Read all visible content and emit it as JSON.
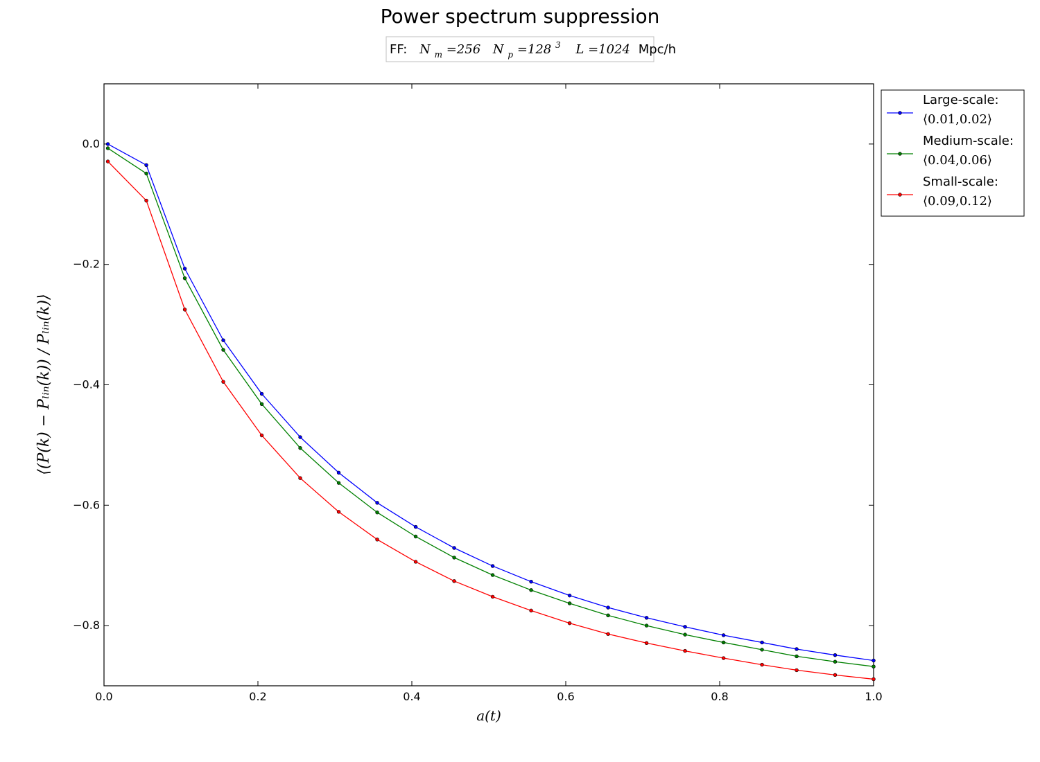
{
  "chart_data": {
    "type": "line",
    "title": "Power spectrum suppression",
    "annotation": {
      "prefix": "FF:",
      "Nm": "N",
      "Nm_sub": "m",
      "Nm_value": "=256",
      "Np": "N",
      "Np_sub": "p",
      "Np_value": "=128",
      "Np_exp": "3",
      "L": "L",
      "L_value": "=1024",
      "unit": "Mpc/h"
    },
    "xlabel": "a(t)",
    "ylabel": "⟨(P(k) − Pₗᵢₙ(k)) / Pₗᵢₙ(k)⟩",
    "xlim": [
      0.0,
      1.0
    ],
    "ylim": [
      -0.9,
      0.1
    ],
    "xticks": [
      0.0,
      0.2,
      0.4,
      0.6,
      0.8,
      1.0
    ],
    "xtick_labels": [
      "0.0",
      "0.2",
      "0.4",
      "0.6",
      "0.8",
      "1.0"
    ],
    "yticks": [
      0.0,
      -0.2,
      -0.4,
      -0.6,
      -0.8
    ],
    "ytick_labels": [
      "0.0",
      "−0.2",
      "−0.4",
      "−0.6",
      "−0.8"
    ],
    "grid": false,
    "legend_position": "outside-top-right",
    "x": [
      0.005,
      0.055,
      0.105,
      0.155,
      0.205,
      0.255,
      0.305,
      0.355,
      0.405,
      0.455,
      0.505,
      0.555,
      0.605,
      0.655,
      0.705,
      0.755,
      0.805,
      0.855,
      0.9,
      0.95,
      1.0
    ],
    "series": [
      {
        "name": "Large-scale:",
        "range": "⟨0.01,0.02⟩",
        "color": "#0000ff",
        "values": [
          0.0,
          -0.035,
          -0.207,
          -0.326,
          -0.415,
          -0.487,
          -0.546,
          -0.596,
          -0.636,
          -0.671,
          -0.701,
          -0.727,
          -0.75,
          -0.77,
          -0.787,
          -0.802,
          -0.816,
          -0.828,
          -0.839,
          -0.849,
          -0.858
        ]
      },
      {
        "name": "Medium-scale:",
        "range": "⟨0.04,0.06⟩",
        "color": "#008000",
        "values": [
          -0.007,
          -0.049,
          -0.223,
          -0.342,
          -0.432,
          -0.505,
          -0.563,
          -0.612,
          -0.652,
          -0.687,
          -0.716,
          -0.741,
          -0.763,
          -0.783,
          -0.8,
          -0.815,
          -0.828,
          -0.84,
          -0.851,
          -0.86,
          -0.868
        ]
      },
      {
        "name": "Small-scale:",
        "range": "⟨0.09,0.12⟩",
        "color": "#ff0000",
        "values": [
          -0.029,
          -0.094,
          -0.275,
          -0.395,
          -0.484,
          -0.555,
          -0.611,
          -0.657,
          -0.694,
          -0.726,
          -0.752,
          -0.775,
          -0.796,
          -0.814,
          -0.829,
          -0.842,
          -0.854,
          -0.865,
          -0.874,
          -0.882,
          -0.889
        ]
      }
    ]
  }
}
